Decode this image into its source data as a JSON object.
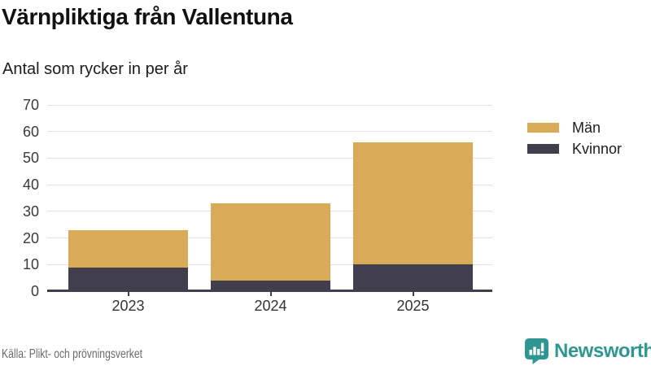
{
  "header": {
    "title": "Värnpliktiga från Vallentuna",
    "subtitle": "Antal som rycker in per år"
  },
  "chart_data": {
    "type": "bar",
    "stacked": true,
    "title": "Värnpliktiga från Vallentuna",
    "subtitle": "Antal som rycker in per år",
    "categories": [
      "2023",
      "2024",
      "2025"
    ],
    "series": [
      {
        "name": "Män",
        "color": "#d9ab58",
        "values": [
          14,
          29,
          46
        ]
      },
      {
        "name": "Kvinnor",
        "color": "#413f4d",
        "values": [
          9,
          4,
          10
        ]
      }
    ],
    "stacked_totals": [
      23,
      33,
      56
    ],
    "ylim": [
      0,
      70
    ],
    "yticks": [
      0,
      10,
      20,
      30,
      40,
      50,
      60,
      70
    ],
    "grid": true,
    "legend_position": "right"
  },
  "footer": {
    "source": "Källa: Plikt- och prövningsverket",
    "brand_name": "Newsworthy"
  },
  "colors": {
    "bar_men": "#d9ab58",
    "bar_women": "#413f4d",
    "grid": "#e2e2e2",
    "axis": "#413f4d",
    "brand_teal": "#2f9791",
    "source_text": "#6b6b6b"
  }
}
